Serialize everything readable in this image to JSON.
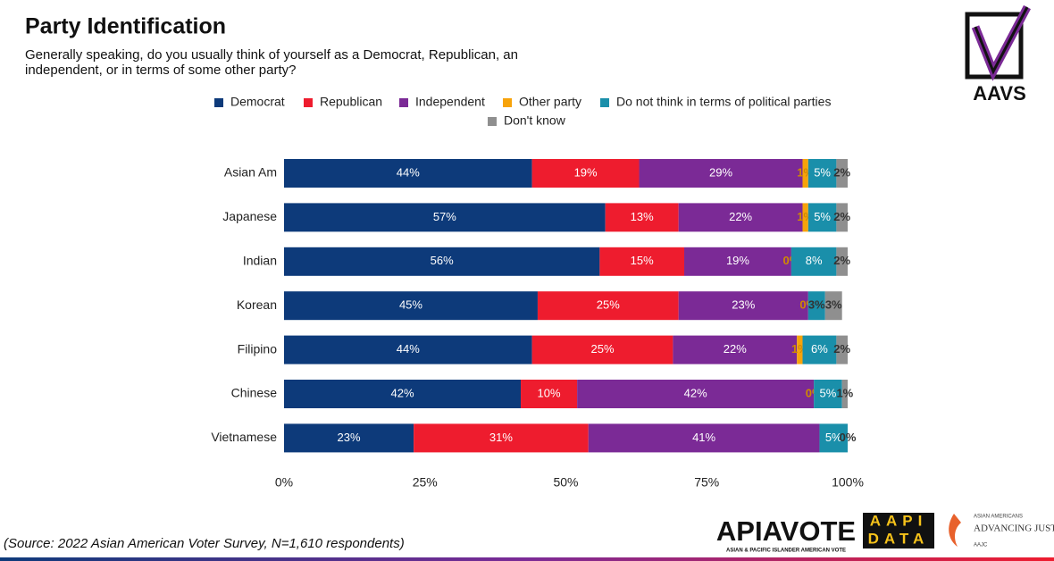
{
  "chart_data": {
    "type": "stacked_bar_horizontal",
    "title": "Party Identification",
    "subtitle": [
      "Generally speaking, do you usually think of yourself as a Democrat, Republican, an",
      "independent, or in terms of some other party?"
    ],
    "categories": [
      "Asian Am",
      "Japanese",
      "Indian",
      "Korean",
      "Filipino",
      "Chinese",
      "Vietnamese"
    ],
    "series": [
      {
        "name": "Democrat",
        "color": "#0d3a7a",
        "values": [
          44,
          57,
          56,
          45,
          44,
          42,
          23
        ],
        "value_labels": [
          "44%",
          "57%",
          "56%",
          "45%",
          "44%",
          "42%",
          "23%"
        ]
      },
      {
        "name": "Republican",
        "color": "#ee1c2e",
        "values": [
          19,
          13,
          15,
          25,
          25,
          10,
          31
        ],
        "value_labels": [
          "19%",
          "13%",
          "15%",
          "25%",
          "25%",
          "10%",
          "31%"
        ]
      },
      {
        "name": "Independent",
        "color": "#7b2a96",
        "values": [
          29,
          22,
          19,
          23,
          22,
          42,
          41
        ],
        "value_labels": [
          "29%",
          "22%",
          "19%",
          "23%",
          "22%",
          "42%",
          "41%"
        ]
      },
      {
        "name": "Other party",
        "color": "#f7a30a",
        "values": [
          1,
          1,
          0,
          0,
          1,
          0,
          null
        ],
        "value_labels": [
          "1%",
          "1%",
          "0%",
          "0%",
          "1%",
          "0%",
          null
        ]
      },
      {
        "name": "Do not think in terms of political parties",
        "color": "#1a8faa",
        "values": [
          5,
          5,
          8,
          3,
          6,
          5,
          5
        ],
        "value_labels": [
          "5%",
          "5%",
          "8%",
          "3%",
          "6%",
          "5%",
          "5%"
        ]
      },
      {
        "name": "Don't know",
        "color": "#8f8f8f",
        "values": [
          2,
          2,
          2,
          3,
          2,
          1,
          0
        ],
        "value_labels": [
          "2%",
          "2%",
          "2%",
          "3%",
          "2%",
          "1%",
          "0%"
        ]
      }
    ],
    "xlim": [
      0,
      100
    ],
    "xticks": [
      {
        "value": 0,
        "label": "0%"
      },
      {
        "value": 25,
        "label": "25%"
      },
      {
        "value": 50,
        "label": "50%"
      },
      {
        "value": 75,
        "label": "75%"
      },
      {
        "value": 100,
        "label": "100%"
      }
    ],
    "source": "(Source: 2022 Asian American Voter Survey, N=1,610 respondents)"
  },
  "logos": {
    "aavs": "AAVS",
    "apiavote": "APIAVOTE",
    "apiavote_sub": "ASIAN & PACIFIC ISLANDER AMERICAN VOTE",
    "aapi": "AAPI",
    "data": "DATA",
    "aajc": "ADVANCING JUSTICE",
    "aajc_top": "ASIAN AMERICANS",
    "aajc_sub": "AAJC"
  }
}
